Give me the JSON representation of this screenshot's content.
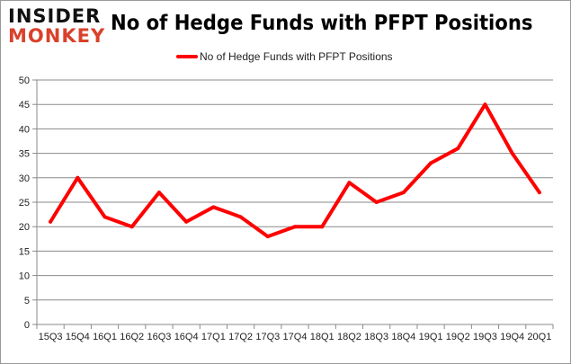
{
  "logo": {
    "line1": "INSIDER",
    "line2": "MONKEY"
  },
  "chart_data": {
    "type": "line",
    "title": "No of Hedge Funds with PFPT Positions",
    "xlabel": "",
    "ylabel": "",
    "categories": [
      "15Q3",
      "15Q4",
      "16Q1",
      "16Q2",
      "16Q3",
      "16Q4",
      "17Q1",
      "17Q2",
      "17Q3",
      "17Q4",
      "18Q1",
      "18Q2",
      "18Q3",
      "18Q4",
      "19Q1",
      "19Q2",
      "19Q3",
      "19Q4",
      "20Q1"
    ],
    "series": [
      {
        "name": "No of Hedge Funds with PFPT Positions",
        "color": "#ff0000",
        "values": [
          21,
          30,
          22,
          20,
          27,
          21,
          24,
          22,
          18,
          20,
          20,
          29,
          25,
          27,
          33,
          36,
          45,
          35,
          27
        ]
      }
    ],
    "ylim": [
      0,
      50
    ],
    "yticks": [
      0,
      5,
      10,
      15,
      20,
      25,
      30,
      35,
      40,
      45,
      50
    ],
    "grid": true,
    "legend": "top"
  }
}
